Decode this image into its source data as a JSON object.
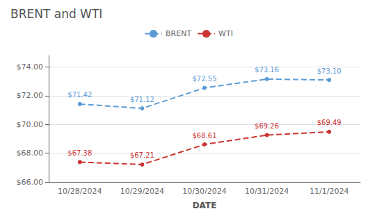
{
  "chart_data": {
    "type": "line",
    "title": "BRENT and WTI",
    "xlabel": "DATE",
    "categories": [
      "10/28/2024",
      "10/29/2024",
      "10/30/2024",
      "10/31/2024",
      "11/1/2024"
    ],
    "series": [
      {
        "name": "BRENT",
        "color": "#5b9bd5",
        "values": [
          71.42,
          71.12,
          72.55,
          73.16,
          73.1
        ],
        "value_labels": [
          "$71.42",
          "$71.12",
          "$72.55",
          "$73.16",
          "$73.10"
        ],
        "line_style": "dashed",
        "marker": "circle"
      },
      {
        "name": "WTI",
        "color": "#cc3333",
        "values": [
          67.38,
          67.21,
          68.61,
          69.26,
          69.49
        ],
        "value_labels": [
          "$67.38",
          "$67.21",
          "$68.61",
          "$69.26",
          "$69.49"
        ],
        "line_style": "dashed",
        "marker": "circle"
      }
    ],
    "ylim": [
      66.0,
      74.8
    ],
    "yticks": [
      {
        "value": 66.0,
        "label": "$66.00"
      },
      {
        "value": 68.0,
        "label": "$68.00"
      },
      {
        "value": 70.0,
        "label": "$70.00"
      },
      {
        "value": 72.0,
        "label": "$72.00"
      },
      {
        "value": 74.0,
        "label": "$74.00"
      }
    ],
    "grid": true,
    "legend": "top",
    "data_labels": true
  }
}
